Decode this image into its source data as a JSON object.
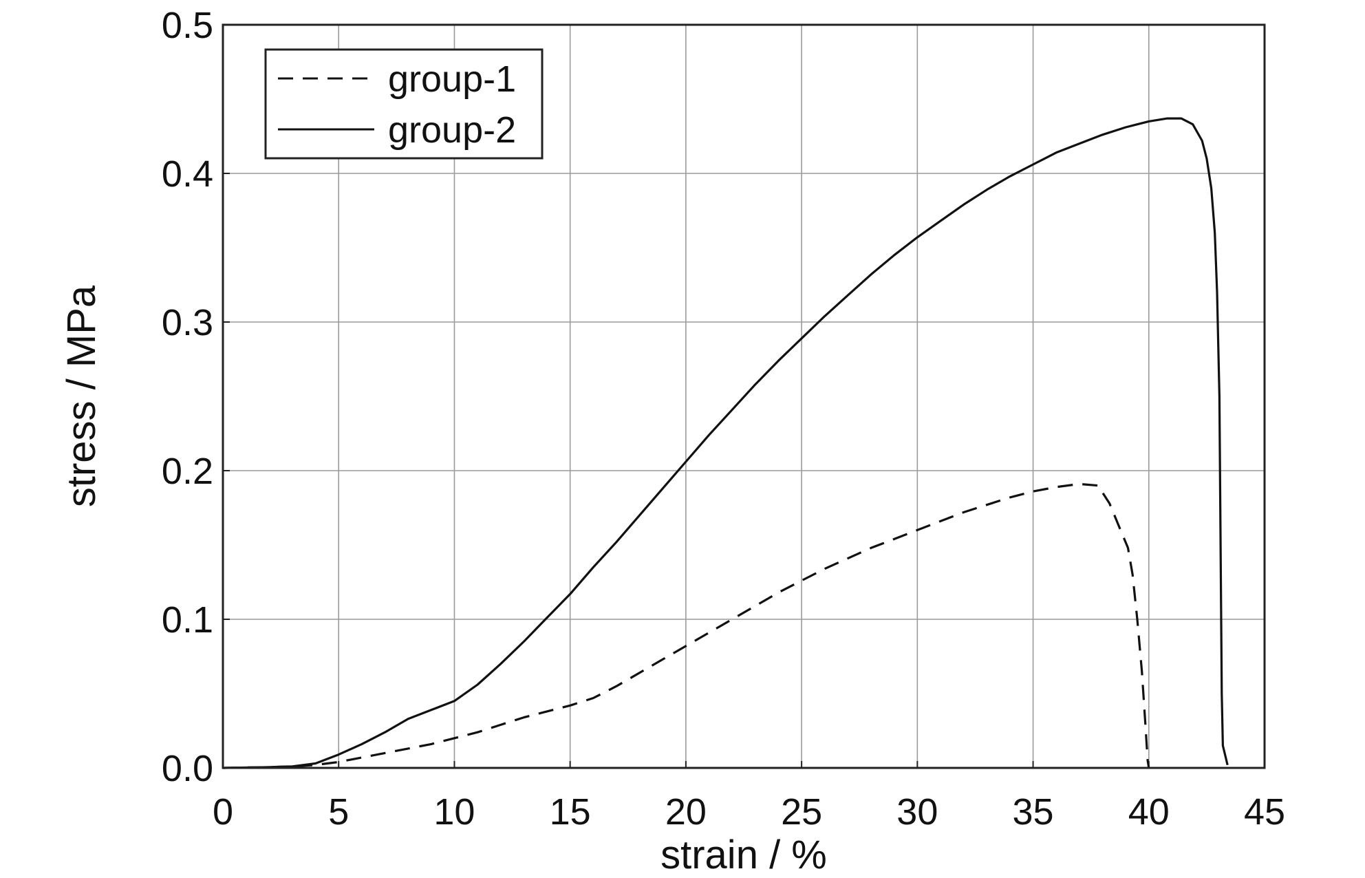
{
  "chart_data": {
    "type": "line",
    "title": "",
    "xlabel": "strain / %",
    "ylabel": "stress / MPa",
    "xlim": [
      0,
      45
    ],
    "ylim": [
      0,
      0.5
    ],
    "x_ticks": [
      0,
      5,
      10,
      15,
      20,
      25,
      30,
      35,
      40,
      45
    ],
    "x_tick_labels": [
      "0",
      "5",
      "10",
      "15",
      "20",
      "25",
      "30",
      "35",
      "40",
      "45"
    ],
    "y_ticks": [
      0,
      0.1,
      0.2,
      0.3,
      0.4,
      0.5
    ],
    "y_tick_labels": [
      "0.0",
      "0.1",
      "0.2",
      "0.3",
      "0.4",
      "0.5"
    ],
    "grid": true,
    "legend_position": "top-left",
    "series": [
      {
        "name": "group-1",
        "style": "dashed",
        "color": "#111111",
        "points": [
          [
            0,
            0
          ],
          [
            2,
            0.0005
          ],
          [
            3,
            0.001
          ],
          [
            4,
            0.002
          ],
          [
            5,
            0.004
          ],
          [
            6,
            0.007
          ],
          [
            7,
            0.01
          ],
          [
            8,
            0.013
          ],
          [
            9,
            0.016
          ],
          [
            10,
            0.02
          ],
          [
            11,
            0.024
          ],
          [
            12,
            0.029
          ],
          [
            13,
            0.034
          ],
          [
            14,
            0.038
          ],
          [
            15,
            0.042
          ],
          [
            16,
            0.047
          ],
          [
            17,
            0.055
          ],
          [
            18,
            0.064
          ],
          [
            19,
            0.073
          ],
          [
            20,
            0.082
          ],
          [
            21,
            0.091
          ],
          [
            22,
            0.1
          ],
          [
            23,
            0.109
          ],
          [
            24,
            0.118
          ],
          [
            25,
            0.126
          ],
          [
            26,
            0.134
          ],
          [
            27,
            0.141
          ],
          [
            28,
            0.148
          ],
          [
            29,
            0.154
          ],
          [
            30,
            0.16
          ],
          [
            31,
            0.166
          ],
          [
            32,
            0.172
          ],
          [
            33,
            0.177
          ],
          [
            34,
            0.182
          ],
          [
            35,
            0.186
          ],
          [
            36,
            0.189
          ],
          [
            37,
            0.191
          ],
          [
            37.8,
            0.19
          ],
          [
            38.3,
            0.178
          ],
          [
            38.7,
            0.163
          ],
          [
            39.1,
            0.148
          ],
          [
            39.3,
            0.13
          ],
          [
            39.5,
            0.1
          ],
          [
            39.7,
            0.065
          ],
          [
            39.85,
            0.03
          ],
          [
            39.95,
            0.005
          ],
          [
            40,
            0
          ]
        ]
      },
      {
        "name": "group-2",
        "style": "solid",
        "color": "#111111",
        "points": [
          [
            0,
            0
          ],
          [
            2,
            0.0005
          ],
          [
            3,
            0.001
          ],
          [
            4,
            0.003
          ],
          [
            5,
            0.009
          ],
          [
            6,
            0.016
          ],
          [
            7,
            0.024
          ],
          [
            8,
            0.033
          ],
          [
            9,
            0.039
          ],
          [
            10,
            0.045
          ],
          [
            11,
            0.056
          ],
          [
            12,
            0.07
          ],
          [
            13,
            0.085
          ],
          [
            14,
            0.101
          ],
          [
            15,
            0.117
          ],
          [
            16,
            0.135
          ],
          [
            17,
            0.152
          ],
          [
            18,
            0.17
          ],
          [
            19,
            0.188
          ],
          [
            20,
            0.206
          ],
          [
            21,
            0.224
          ],
          [
            22,
            0.241
          ],
          [
            23,
            0.258
          ],
          [
            24,
            0.274
          ],
          [
            25,
            0.289
          ],
          [
            26,
            0.304
          ],
          [
            27,
            0.318
          ],
          [
            28,
            0.332
          ],
          [
            29,
            0.345
          ],
          [
            30,
            0.357
          ],
          [
            31,
            0.368
          ],
          [
            32,
            0.379
          ],
          [
            33,
            0.389
          ],
          [
            34,
            0.398
          ],
          [
            35,
            0.406
          ],
          [
            36,
            0.414
          ],
          [
            37,
            0.42
          ],
          [
            38,
            0.426
          ],
          [
            39,
            0.431
          ],
          [
            40,
            0.435
          ],
          [
            40.8,
            0.437
          ],
          [
            41.4,
            0.437
          ],
          [
            41.9,
            0.433
          ],
          [
            42.3,
            0.422
          ],
          [
            42.5,
            0.41
          ],
          [
            42.7,
            0.39
          ],
          [
            42.85,
            0.36
          ],
          [
            42.95,
            0.32
          ],
          [
            43.05,
            0.25
          ],
          [
            43.1,
            0.15
          ],
          [
            43.15,
            0.05
          ],
          [
            43.2,
            0.015
          ],
          [
            43.4,
            0.002
          ]
        ]
      }
    ]
  }
}
